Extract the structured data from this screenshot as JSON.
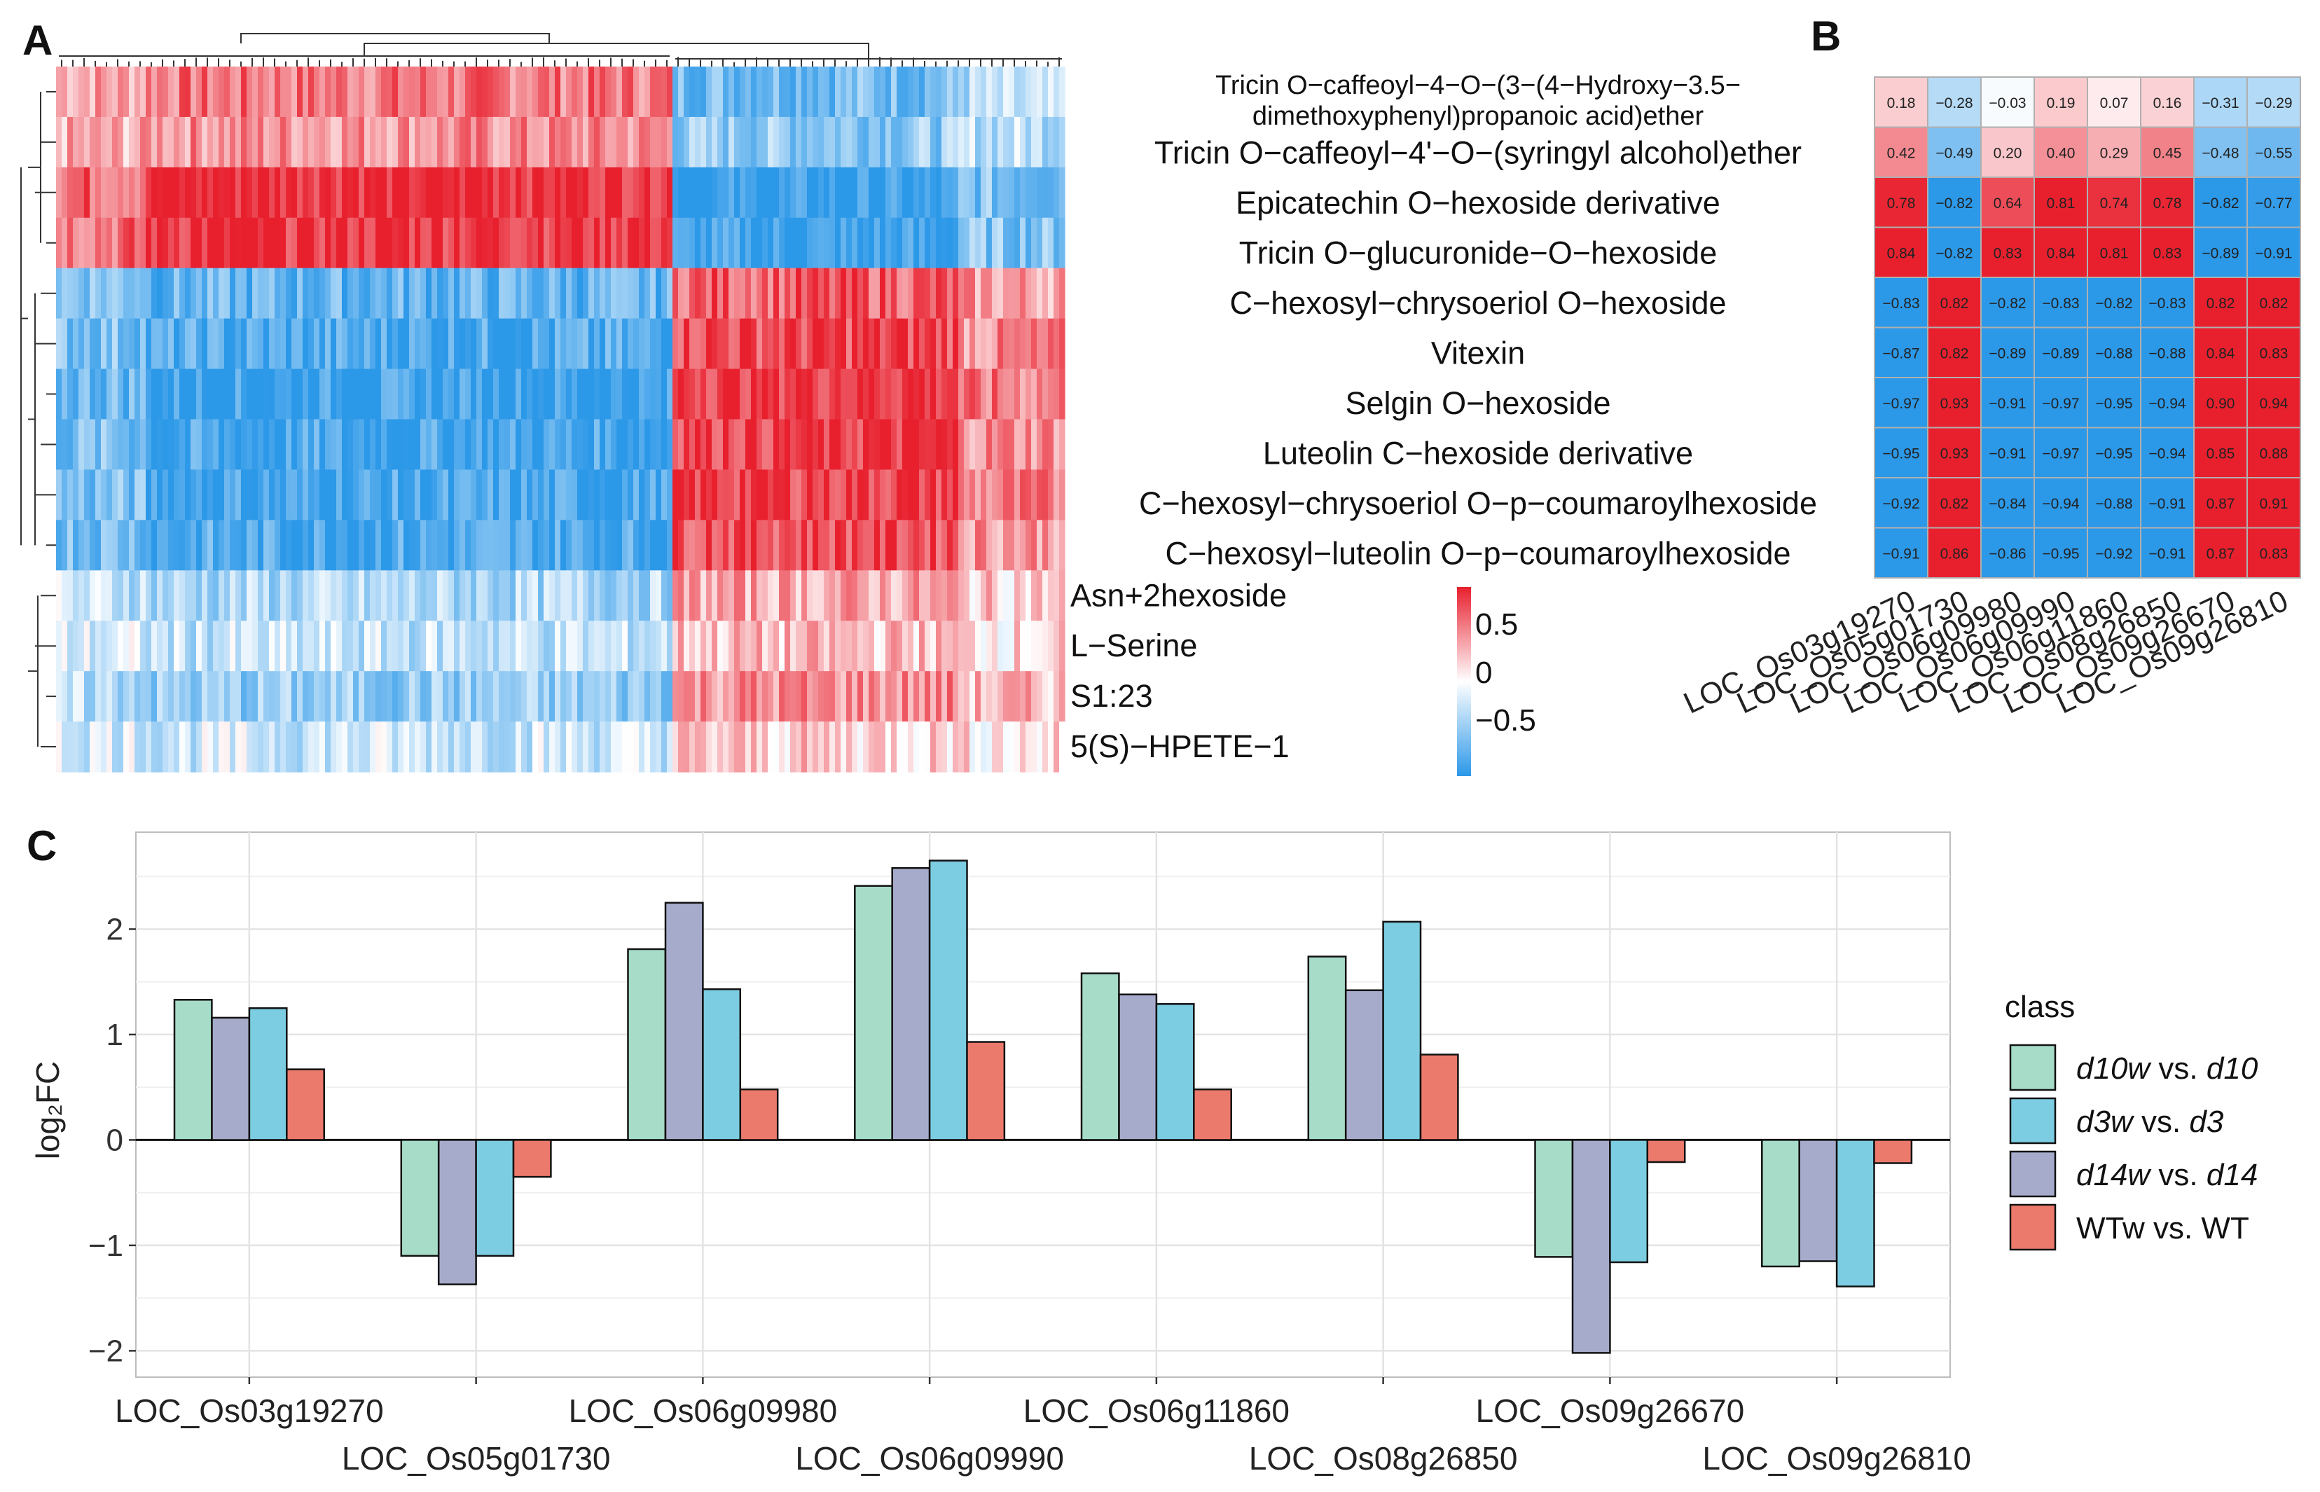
{
  "panel_labels": {
    "a": "A",
    "b": "B",
    "c": "C"
  },
  "colors": {
    "low": "#2c98e8",
    "mid": "#ffffff",
    "high": "#e8202e",
    "teal": "#a6dcc8",
    "navy": "#a7abcb",
    "sky": "#7ccde2",
    "coral": "#ec7a6c"
  },
  "chart_data": [
    {
      "type": "heatmap",
      "panel": "A",
      "rows": [
        "Tricin O-caffeoyl-4-O-(3-(4-Hydroxy-3.5-dimethoxyphenyl)propanoic acid)ether",
        "Tricin O-caffeoyl-4'-O-(syringyl alcohol)ether",
        "Epicatechin O-hexoside derivative",
        "Tricin O-glucuronide-O-hexoside",
        "C-hexosyl-chrysoeriol O-hexoside",
        "Vitexin",
        "Selgin O-hexoside",
        "Luteolin C-hexoside derivative",
        "C-hexosyl-chrysoeriol O-p-coumaroylhexoside",
        "C-hexosyl-luteolin O-p-coumaroylhexoside",
        "Asn+2hexoside",
        "L-Serine",
        "S1:23",
        "5(S)-HPETE-1"
      ],
      "row_labels_shown_left_panel": [
        "Asn+2hexoside",
        "L−Serine",
        "S1:23",
        "5(S)−HPETE−1"
      ],
      "columns_description": "Gene columns clustered into two blocks; first ~60% of columns show positive correlation for the top 4 rows and negative for the rest, the remaining columns are reversed",
      "colorbar": {
        "ticks": [
          "0.5",
          "0",
          "−0.5"
        ],
        "range": [
          -0.8,
          0.8
        ]
      }
    },
    {
      "type": "heatmap",
      "panel": "B",
      "row_labels": [
        [
          "Tricin O−caffeoyl−4−O−(3−(4−Hydroxy−3.5−",
          "dimethoxyphenyl)propanoic acid)ether"
        ],
        [
          "Tricin O−caffeoyl−4'−O−(syringyl alcohol)ether"
        ],
        [
          "Epicatechin O−hexoside derivative"
        ],
        [
          "Tricin O−glucuronide−O−hexoside"
        ],
        [
          "C−hexosyl−chrysoeriol O−hexoside"
        ],
        [
          "Vitexin"
        ],
        [
          "Selgin O−hexoside"
        ],
        [
          "Luteolin C−hexoside derivative"
        ],
        [
          "C−hexosyl−chrysoeriol O−p−coumaroylhexoside"
        ],
        [
          "C−hexosyl−luteolin O−p−coumaroylhexoside"
        ]
      ],
      "columns": [
        "LOC_Os03g19270",
        "LOC_Os05g01730",
        "LOC_Os06g09980",
        "LOC_Os06g09990",
        "LOC_Os06g11860",
        "LOC_Os08g26850",
        "LOC_Os09g26670",
        "LOC_Os09g26810"
      ],
      "values": [
        [
          0.18,
          -0.28,
          -0.03,
          0.19,
          0.07,
          0.16,
          -0.31,
          -0.29
        ],
        [
          0.42,
          -0.49,
          0.2,
          0.4,
          0.29,
          0.45,
          -0.48,
          -0.55
        ],
        [
          0.78,
          -0.82,
          0.64,
          0.81,
          0.74,
          0.78,
          -0.82,
          -0.77
        ],
        [
          0.84,
          -0.82,
          0.83,
          0.84,
          0.81,
          0.83,
          -0.89,
          -0.91
        ],
        [
          -0.83,
          0.82,
          -0.82,
          -0.83,
          -0.82,
          -0.83,
          0.82,
          0.82
        ],
        [
          -0.87,
          0.82,
          -0.89,
          -0.89,
          -0.88,
          -0.88,
          0.84,
          0.83
        ],
        [
          -0.97,
          0.93,
          -0.91,
          -0.97,
          -0.95,
          -0.94,
          0.9,
          0.94
        ],
        [
          -0.95,
          0.93,
          -0.91,
          -0.97,
          -0.95,
          -0.94,
          0.85,
          0.88
        ],
        [
          -0.92,
          0.82,
          -0.84,
          -0.94,
          -0.88,
          -0.91,
          0.87,
          0.91
        ],
        [
          -0.91,
          0.86,
          -0.86,
          -0.95,
          -0.92,
          -0.91,
          0.87,
          0.83
        ]
      ],
      "value_labels": [
        [
          "0.18",
          "−0.28",
          "−0.03",
          "0.19",
          "0.07",
          "0.16",
          "−0.31",
          "−0.29"
        ],
        [
          "0.42",
          "−0.49",
          "0.20",
          "0.40",
          "0.29",
          "0.45",
          "−0.48",
          "−0.55"
        ],
        [
          "0.78",
          "−0.82",
          "0.64",
          "0.81",
          "0.74",
          "0.78",
          "−0.82",
          "−0.77"
        ],
        [
          "0.84",
          "−0.82",
          "0.83",
          "0.84",
          "0.81",
          "0.83",
          "−0.89",
          "−0.91"
        ],
        [
          "−0.83",
          "0.82",
          "−0.82",
          "−0.83",
          "−0.82",
          "−0.83",
          "0.82",
          "0.82"
        ],
        [
          "−0.87",
          "0.82",
          "−0.89",
          "−0.89",
          "−0.88",
          "−0.88",
          "0.84",
          "0.83"
        ],
        [
          "−0.97",
          "0.93",
          "−0.91",
          "−0.97",
          "−0.95",
          "−0.94",
          "0.90",
          "0.94"
        ],
        [
          "−0.95",
          "0.93",
          "−0.91",
          "−0.97",
          "−0.95",
          "−0.94",
          "0.85",
          "0.88"
        ],
        [
          "−0.92",
          "0.82",
          "−0.84",
          "−0.94",
          "−0.88",
          "−0.91",
          "0.87",
          "0.91"
        ],
        [
          "−0.91",
          "0.86",
          "−0.86",
          "−0.95",
          "−0.92",
          "−0.91",
          "0.87",
          "0.83"
        ]
      ]
    },
    {
      "type": "bar",
      "panel": "C",
      "categories": [
        "LOC_Os03g19270",
        "LOC_Os05g01730",
        "LOC_Os06g09980",
        "LOC_Os06g09990",
        "LOC_Os06g11860",
        "LOC_Os08g26850",
        "LOC_Os09g26670",
        "LOC_Os09g26810"
      ],
      "series": [
        {
          "name": "d10w vs. d10",
          "color": "#a6dcc8",
          "values": [
            1.33,
            -1.1,
            1.81,
            2.41,
            1.58,
            1.74,
            -1.11,
            -1.2
          ]
        },
        {
          "name": "d14w vs. d14",
          "color": "#a7abcb",
          "values": [
            1.16,
            -1.37,
            2.25,
            2.58,
            1.38,
            1.42,
            -2.02,
            -1.15
          ]
        },
        {
          "name": "d3w vs. d3",
          "color": "#7ccde2",
          "values": [
            1.25,
            -1.1,
            1.43,
            2.65,
            1.29,
            2.07,
            -1.16,
            -1.39
          ]
        },
        {
          "name": "WTw vs. WT",
          "color": "#ec7a6c",
          "values": [
            0.67,
            -0.35,
            0.48,
            0.93,
            0.48,
            0.81,
            -0.21,
            -0.22
          ]
        }
      ],
      "ylabel": "log₂FC",
      "ylim": [
        -2.25,
        2.92
      ],
      "yticks": [
        -2,
        -1,
        0,
        1,
        2
      ],
      "ytick_labels": [
        "−2",
        "−1",
        "0",
        "1",
        "2"
      ],
      "grid": true,
      "legend": {
        "title": "class",
        "placement": "right",
        "entries": [
          {
            "italic_a": "d10w",
            "middle": " vs. ",
            "italic_b": "d10",
            "color": "#a6dcc8"
          },
          {
            "italic_a": "d3w",
            "middle": " vs. ",
            "italic_b": "d3",
            "color": "#7ccde2"
          },
          {
            "italic_a": "d14w",
            "middle": " vs. ",
            "italic_b": "d14",
            "color": "#a7abcb"
          },
          {
            "italic_a": "",
            "middle": "WTw vs. WT",
            "italic_b": "",
            "color": "#ec7a6c"
          }
        ]
      }
    }
  ]
}
